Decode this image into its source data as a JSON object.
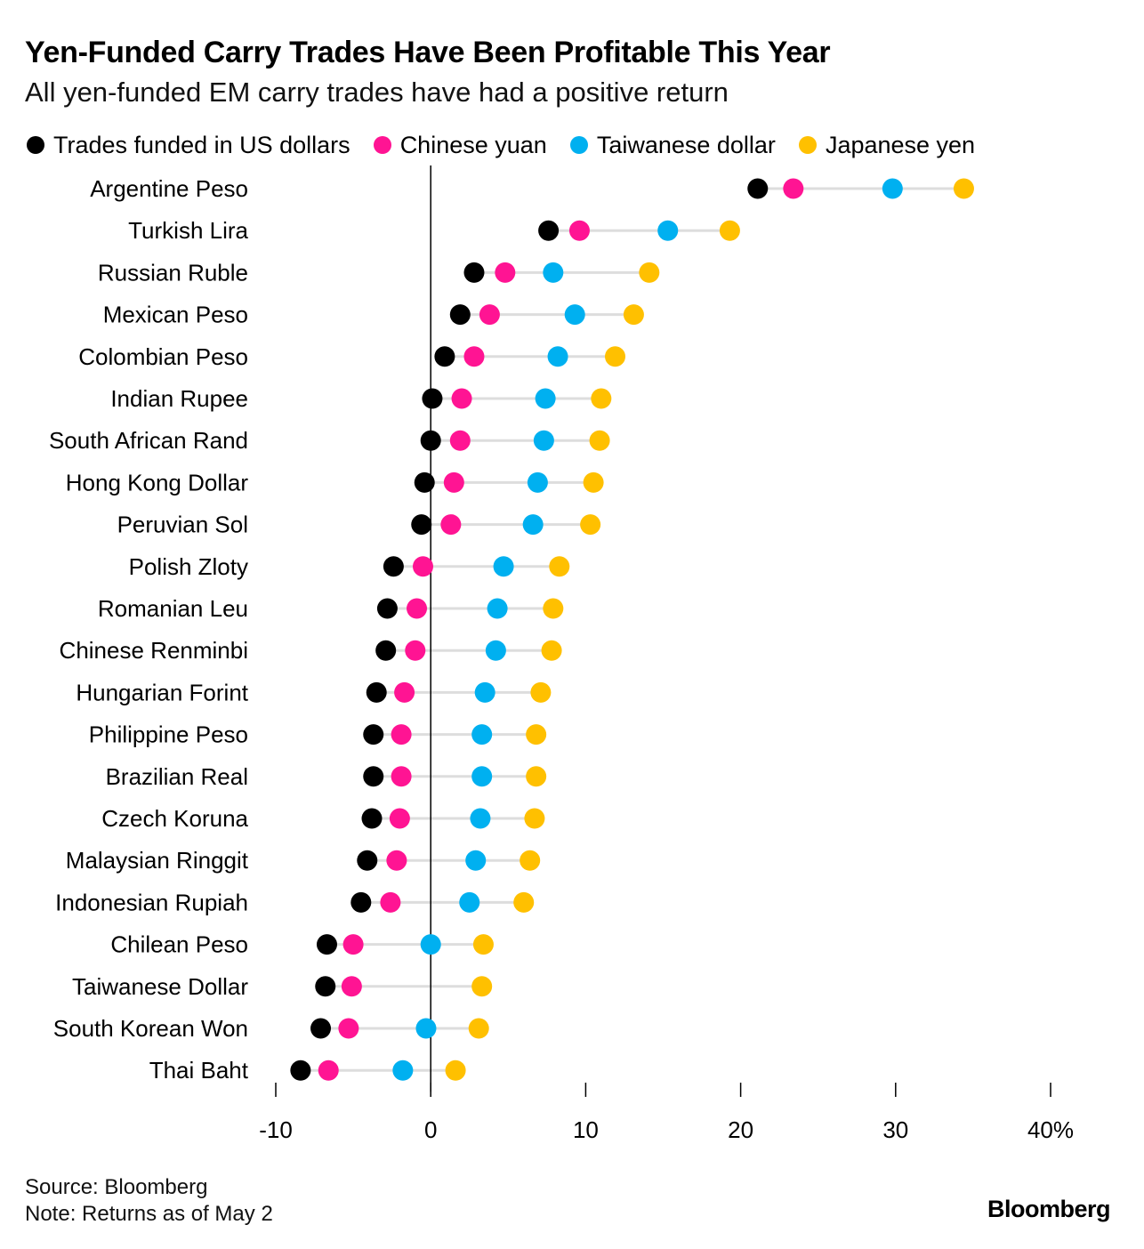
{
  "header": {
    "title": "Yen-Funded Carry Trades Have Been Profitable This Year",
    "subtitle": "All yen-funded EM carry trades have had a positive return"
  },
  "legend": [
    {
      "label": "Trades funded in US dollars",
      "color": "#000000"
    },
    {
      "label": "Chinese yuan",
      "color": "#ff1493"
    },
    {
      "label": "Taiwanese dollar",
      "color": "#00b0f0"
    },
    {
      "label": "Japanese yen",
      "color": "#ffc000"
    }
  ],
  "footer": {
    "source": "Source: Bloomberg",
    "note": "Note: Returns as of May 2",
    "brand": "Bloomberg"
  },
  "chart_data": {
    "type": "dot-plot",
    "title": "Yen-Funded Carry Trades Have Been Profitable This Year",
    "subtitle": "All yen-funded EM carry trades have had a positive return",
    "xlabel": "",
    "ylabel": "",
    "xlim": [
      -10,
      40
    ],
    "xticks": [
      -10,
      0,
      10,
      20,
      30,
      40
    ],
    "xtick_labels": [
      "-10",
      "0",
      "10",
      "20",
      "30",
      "40%"
    ],
    "legend_position": "top",
    "colors": {
      "usd": "#000000",
      "cny": "#ff1493",
      "twd": "#00b0f0",
      "jpy": "#ffc000"
    },
    "categories": [
      "Argentine Peso",
      "Turkish Lira",
      "Russian Ruble",
      "Mexican Peso",
      "Colombian Peso",
      "Indian Rupee",
      "South African Rand",
      "Hong Kong Dollar",
      "Peruvian Sol",
      "Polish Zloty",
      "Romanian Leu",
      "Chinese Renminbi",
      "Hungarian Forint",
      "Philippine Peso",
      "Brazilian Real",
      "Czech Koruna",
      "Malaysian Ringgit",
      "Indonesian Rupiah",
      "Chilean Peso",
      "Taiwanese Dollar",
      "South Korean Won",
      "Thai Baht"
    ],
    "series": [
      {
        "name": "Trades funded in US dollars",
        "key": "usd",
        "values": [
          21.1,
          7.6,
          2.8,
          1.9,
          0.9,
          0.1,
          0.0,
          -0.4,
          -0.6,
          -2.4,
          -2.8,
          -2.9,
          -3.5,
          -3.7,
          -3.7,
          -3.8,
          -4.1,
          -4.5,
          -6.7,
          -6.8,
          -7.1,
          -8.4
        ]
      },
      {
        "name": "Chinese yuan",
        "key": "cny",
        "values": [
          23.4,
          9.6,
          4.8,
          3.8,
          2.8,
          2.0,
          1.9,
          1.5,
          1.3,
          -0.5,
          -0.9,
          -1.0,
          -1.7,
          -1.9,
          -1.9,
          -2.0,
          -2.2,
          -2.6,
          -5.0,
          -5.1,
          -5.3,
          -6.6
        ]
      },
      {
        "name": "Taiwanese dollar",
        "key": "twd",
        "values": [
          29.8,
          15.3,
          7.9,
          9.3,
          8.2,
          7.4,
          7.3,
          6.9,
          6.6,
          4.7,
          4.3,
          4.2,
          3.5,
          3.3,
          3.3,
          3.2,
          2.9,
          2.5,
          0.0,
          null,
          -0.3,
          -1.8
        ]
      },
      {
        "name": "Japanese yen",
        "key": "jpy",
        "values": [
          34.4,
          19.3,
          14.1,
          13.1,
          11.9,
          11.0,
          10.9,
          10.5,
          10.3,
          8.3,
          7.9,
          7.8,
          7.1,
          6.8,
          6.8,
          6.7,
          6.4,
          6.0,
          3.4,
          3.3,
          3.1,
          1.6
        ]
      }
    ]
  }
}
